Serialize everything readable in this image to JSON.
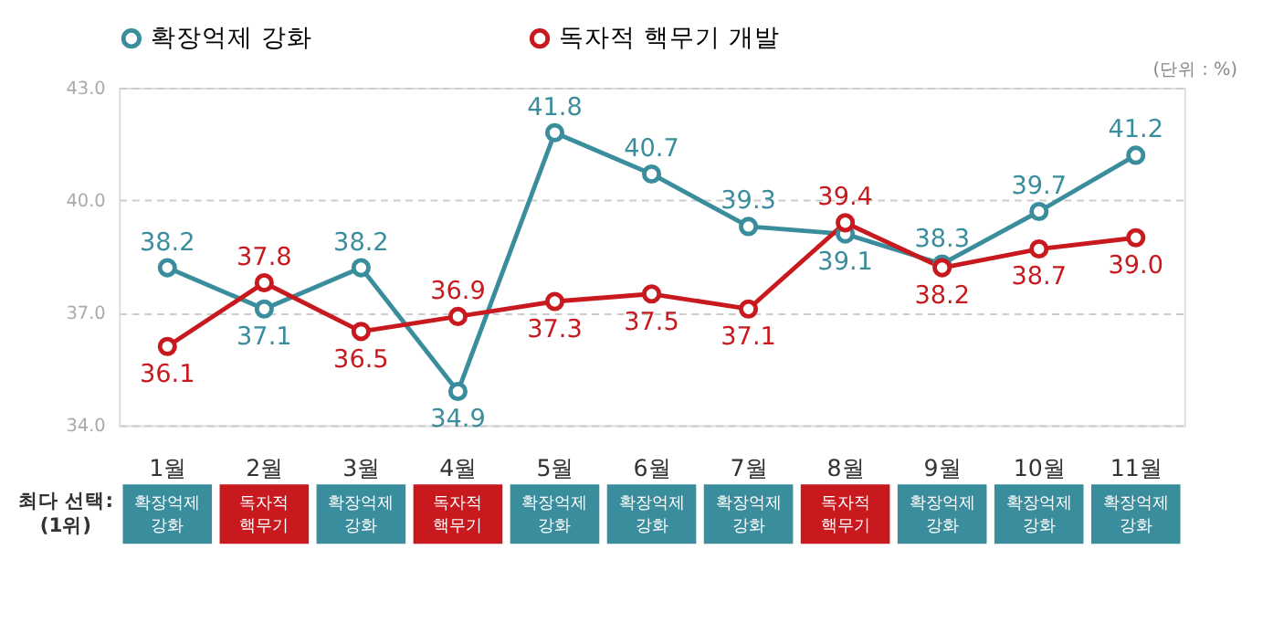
{
  "chart_data": {
    "type": "line",
    "categories": [
      "1월",
      "2월",
      "3월",
      "4월",
      "5월",
      "6월",
      "7월",
      "8월",
      "9월",
      "10월",
      "11월"
    ],
    "series": [
      {
        "name": "확장억제 강화",
        "color": "#3a8d9c",
        "values": [
          38.2,
          37.1,
          38.2,
          34.9,
          41.8,
          40.7,
          39.3,
          39.1,
          38.3,
          39.7,
          41.2
        ],
        "value_labels": [
          "38.2",
          "37.1",
          "38.2",
          "34.9",
          "41.8",
          "40.7",
          "39.3",
          "39.1",
          "38.3",
          "39.7",
          "41.2"
        ]
      },
      {
        "name": "독자적 핵무기 개발",
        "color": "#c8191e",
        "values": [
          36.1,
          37.8,
          36.5,
          36.9,
          37.3,
          37.5,
          37.1,
          39.4,
          38.2,
          38.7,
          39.0
        ],
        "value_labels": [
          "36.1",
          "37.8",
          "36.5",
          "36.9",
          "37.3",
          "37.5",
          "37.1",
          "39.4",
          "38.2",
          "38.7",
          "39.0"
        ]
      }
    ],
    "ylim": [
      34,
      43
    ],
    "yticks": [
      {
        "value": 34,
        "label": "34.0"
      },
      {
        "value": 37,
        "label": "37.0"
      },
      {
        "value": 40,
        "label": "40.0"
      },
      {
        "value": 43,
        "label": "43.0"
      }
    ],
    "grid": "y",
    "legend": "top",
    "marker": "circle",
    "line_style": "solid",
    "annotations": [
      "(단위 : %)",
      "최다 선택:\n(1위)",
      "확장억제\n강화",
      "독자적\n핵무기",
      "확장억제\n강화",
      "독자적\n핵무기",
      "확장억제\n강화",
      "확장억제\n강화",
      "확장억제\n강화",
      "독자적\n핵무기",
      "확장억제\n강화",
      "확장억제\n강화",
      "확장억제\n강화"
    ]
  }
}
